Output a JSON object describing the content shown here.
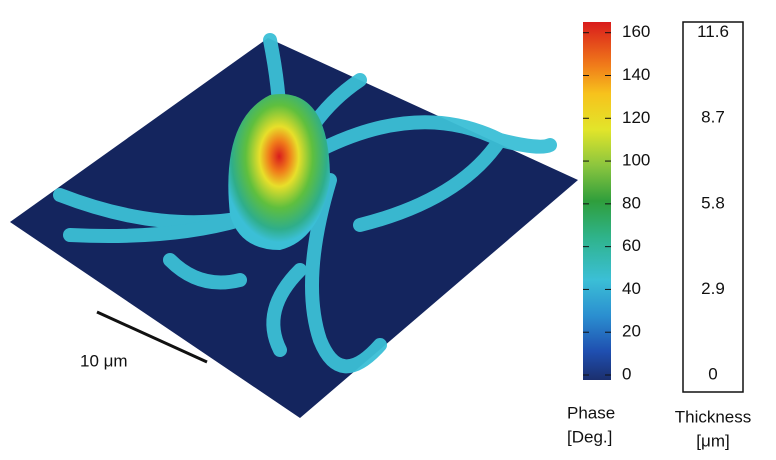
{
  "scale_bar": {
    "label": "10 μm"
  },
  "phase_colorbar": {
    "label_lines": [
      "Phase",
      "[Deg.]"
    ],
    "lim": [
      0,
      165
    ],
    "ticks": [
      0,
      20,
      40,
      60,
      80,
      100,
      120,
      140,
      160
    ]
  },
  "thickness_scale": {
    "label_lines": [
      "Thickness",
      "[μm]"
    ],
    "lim": [
      0,
      11.96
    ],
    "ticks": [
      0,
      2.9,
      5.8,
      8.7,
      11.6
    ]
  }
}
